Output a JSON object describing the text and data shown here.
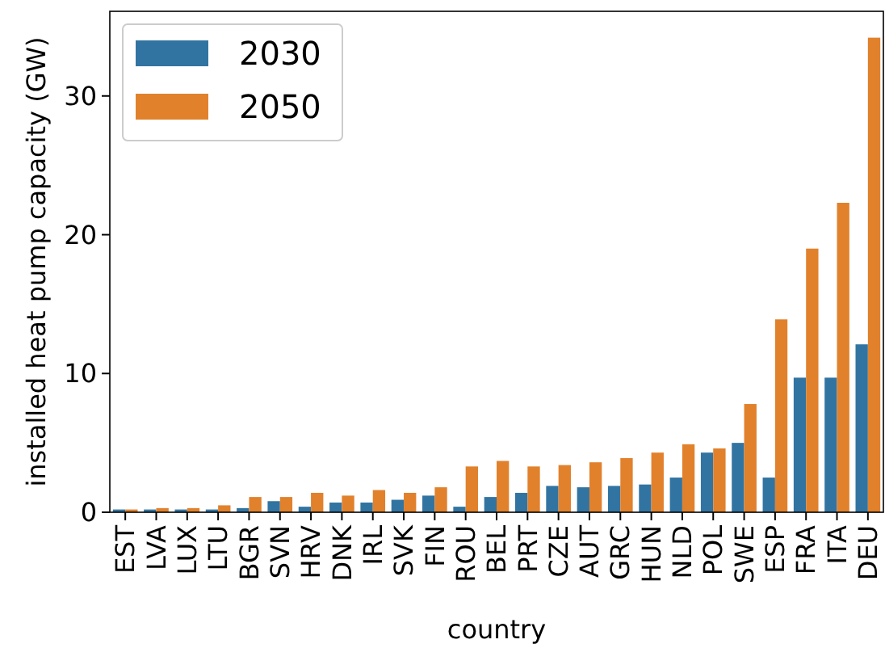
{
  "chart_data": {
    "type": "bar",
    "xlabel": "country",
    "ylabel": "installed heat pump capacity (GW)",
    "categories": [
      "EST",
      "LVA",
      "LUX",
      "LTU",
      "BGR",
      "SVN",
      "HRV",
      "DNK",
      "IRL",
      "SVK",
      "FIN",
      "ROU",
      "BEL",
      "PRT",
      "CZE",
      "AUT",
      "GRC",
      "HUN",
      "NLD",
      "POL",
      "SWE",
      "ESP",
      "FRA",
      "ITA",
      "DEU"
    ],
    "series": [
      {
        "name": "2030",
        "color": "#3274a1",
        "values": [
          0.2,
          0.2,
          0.2,
          0.2,
          0.3,
          0.8,
          0.4,
          0.7,
          0.7,
          0.9,
          1.2,
          0.4,
          1.1,
          1.4,
          1.9,
          1.8,
          1.9,
          2.0,
          2.5,
          4.3,
          5.0,
          2.5,
          9.7,
          9.7,
          12.1
        ]
      },
      {
        "name": "2050",
        "color": "#e1812c",
        "values": [
          0.2,
          0.3,
          0.3,
          0.5,
          1.1,
          1.1,
          1.4,
          1.2,
          1.6,
          1.4,
          1.8,
          3.3,
          3.7,
          3.3,
          3.4,
          3.6,
          3.9,
          4.3,
          4.9,
          4.6,
          7.8,
          13.9,
          19.0,
          22.3,
          34.2
        ]
      }
    ],
    "ylim": [
      0,
      36.1
    ],
    "yticks": [
      0,
      10,
      20,
      30
    ],
    "legend": "top left"
  }
}
